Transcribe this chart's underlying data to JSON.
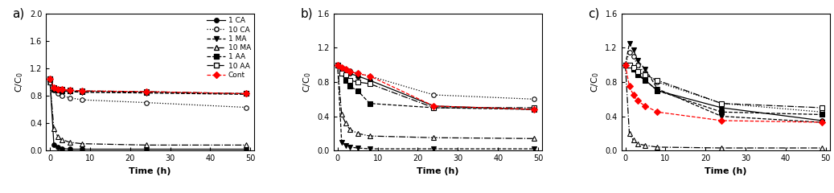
{
  "time_points": [
    0,
    1,
    2,
    3,
    5,
    8,
    24,
    49
  ],
  "panel_a": {
    "label": "a)",
    "ylim": 2.0,
    "yticks": [
      0.0,
      0.4,
      0.8,
      1.2,
      1.6,
      2.0
    ],
    "1 CA": [
      1.05,
      0.08,
      0.05,
      0.03,
      0.02,
      0.02,
      0.02,
      0.02
    ],
    "10 CA": [
      1.0,
      0.88,
      0.83,
      0.8,
      0.77,
      0.74,
      0.7,
      0.63
    ],
    "1 MA": [
      1.05,
      0.9,
      0.88,
      0.87,
      0.86,
      0.85,
      0.84,
      0.82
    ],
    "10 MA": [
      1.0,
      0.32,
      0.2,
      0.16,
      0.12,
      0.1,
      0.08,
      0.08
    ],
    "1 AA": [
      1.05,
      0.9,
      0.88,
      0.87,
      0.87,
      0.86,
      0.85,
      0.83
    ],
    "10 AA": [
      1.05,
      0.92,
      0.9,
      0.89,
      0.88,
      0.87,
      0.86,
      0.83
    ],
    "Cont": [
      1.05,
      0.92,
      0.9,
      0.89,
      0.88,
      0.87,
      0.86,
      0.83
    ]
  },
  "panel_b": {
    "label": "b)",
    "ylim": 1.6,
    "yticks": [
      0.0,
      0.4,
      0.8,
      1.2,
      1.6
    ],
    "1 CA": [
      1.0,
      0.97,
      0.93,
      0.9,
      0.87,
      0.82,
      0.52,
      0.48
    ],
    "10 CA": [
      1.0,
      0.97,
      0.95,
      0.93,
      0.9,
      0.87,
      0.65,
      0.6
    ],
    "1 MA": [
      1.0,
      0.1,
      0.06,
      0.04,
      0.03,
      0.02,
      0.02,
      0.02
    ],
    "10 MA": [
      1.0,
      0.42,
      0.32,
      0.25,
      0.2,
      0.17,
      0.15,
      0.14
    ],
    "1 AA": [
      1.0,
      0.9,
      0.82,
      0.75,
      0.7,
      0.55,
      0.5,
      0.48
    ],
    "10 AA": [
      1.0,
      0.9,
      0.88,
      0.82,
      0.8,
      0.78,
      0.5,
      0.5
    ],
    "Cont": [
      1.0,
      0.97,
      0.95,
      0.92,
      0.9,
      0.87,
      0.52,
      0.48
    ]
  },
  "panel_c": {
    "label": "c)",
    "ylim": 1.6,
    "yticks": [
      0.0,
      0.4,
      0.8,
      1.2,
      1.6
    ],
    "1 CA": [
      1.0,
      1.0,
      0.95,
      0.9,
      0.82,
      0.7,
      0.5,
      0.35
    ],
    "10 CA": [
      1.0,
      1.15,
      1.1,
      1.0,
      0.9,
      0.8,
      0.55,
      0.45
    ],
    "1 MA": [
      1.0,
      1.25,
      1.18,
      1.05,
      0.95,
      0.72,
      0.4,
      0.33
    ],
    "10 MA": [
      1.0,
      0.2,
      0.12,
      0.08,
      0.06,
      0.04,
      0.03,
      0.03
    ],
    "1 AA": [
      1.0,
      1.0,
      0.95,
      0.88,
      0.82,
      0.7,
      0.45,
      0.42
    ],
    "10 AA": [
      1.0,
      1.0,
      0.97,
      0.92,
      0.88,
      0.82,
      0.55,
      0.5
    ],
    "Cont": [
      1.0,
      0.75,
      0.65,
      0.58,
      0.52,
      0.45,
      0.35,
      0.33
    ]
  },
  "series_names": [
    "1 CA",
    "10 CA",
    "1 MA",
    "10 MA",
    "1 AA",
    "10 AA",
    "Cont"
  ],
  "series_ls": [
    "-",
    ":",
    "--",
    "-.",
    "--",
    "-.",
    "--"
  ],
  "series_mk": [
    "o",
    "o",
    "v",
    "^",
    "s",
    "s",
    "D"
  ],
  "series_fs": [
    "full",
    "none",
    "full",
    "none",
    "full",
    "none",
    "full"
  ],
  "series_color": [
    "black",
    "black",
    "black",
    "black",
    "black",
    "black",
    "red"
  ]
}
